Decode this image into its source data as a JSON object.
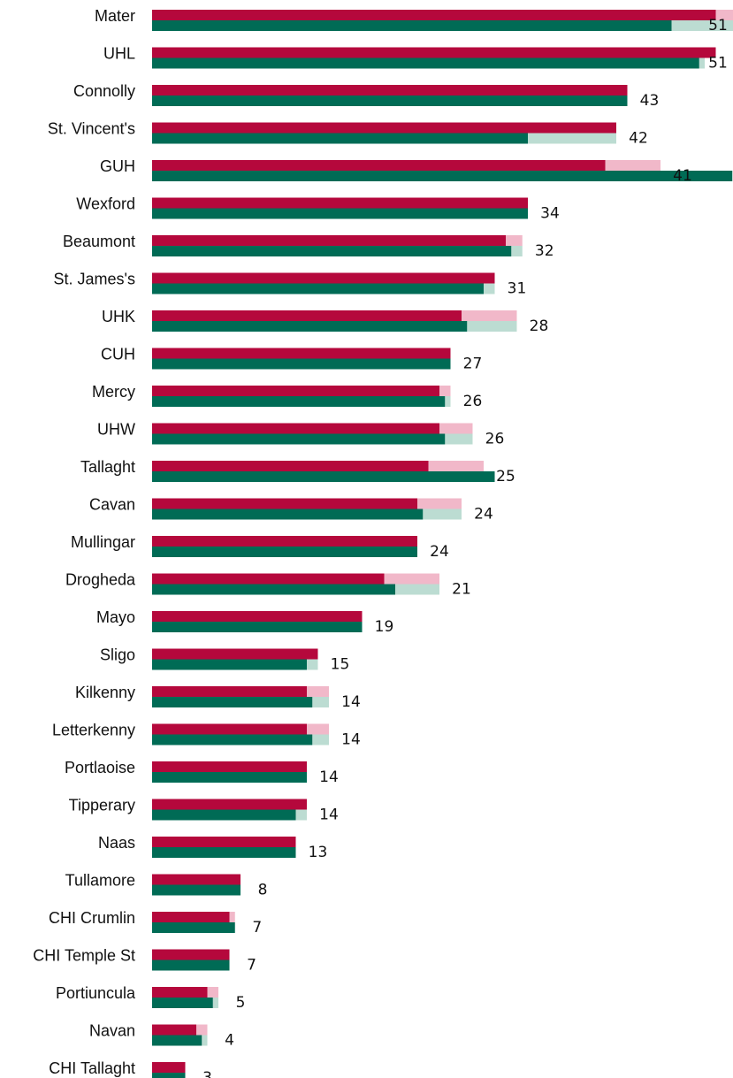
{
  "chart_data": {
    "type": "bar",
    "orientation": "horizontal",
    "categories": [
      "Mater",
      "UHL",
      "Connolly",
      "St. Vincent's",
      "GUH",
      "Wexford",
      "Beaumont",
      "St. James's",
      "UHK",
      "CUH",
      "Mercy",
      "UHW",
      "Tallaght",
      "Cavan",
      "Mullingar",
      "Drogheda",
      "Mayo",
      "Sligo",
      "Kilkenny",
      "Letterkenny",
      "Portlaoise",
      "Tipperary",
      "Naas",
      "Tullamore",
      "CHI Crumlin",
      "CHI Temple St",
      "Portiuncula",
      "Navan",
      "CHI Tallaght"
    ],
    "series": [
      {
        "values": [
          51,
          51,
          43,
          42,
          41,
          34,
          32,
          31,
          28,
          27,
          26,
          26,
          25,
          24,
          24,
          21,
          19,
          15,
          14,
          14,
          14,
          14,
          13,
          8,
          7,
          7,
          5,
          4,
          3
        ]
      },
      {
        "values": [
          47,
          49.5,
          43,
          34,
          52.5,
          34,
          32.5,
          30,
          28.5,
          27,
          26.5,
          26.5,
          31,
          24.5,
          24,
          22,
          19,
          14,
          14.5,
          14.5,
          14,
          13,
          13,
          8,
          7.5,
          7,
          5.5,
          4.5,
          3
        ]
      }
    ],
    "comparison_values": [
      53,
      50,
      43,
      42,
      46,
      34,
      33.5,
      31,
      33,
      27,
      27,
      29,
      30,
      28,
      24,
      26,
      19,
      15,
      16,
      16,
      14,
      14,
      13,
      8,
      7.5,
      7,
      6,
      5,
      3
    ],
    "value_labels": [
      "51",
      "51",
      "43",
      "42",
      "41",
      "34",
      "32",
      "31",
      "28",
      "27",
      "26",
      "26",
      "25",
      "24",
      "24",
      "21",
      "19",
      "15",
      "14",
      "14",
      "14",
      "14",
      "13",
      "8",
      "7",
      "7",
      "5",
      "4",
      "3"
    ],
    "xlim": [
      0,
      53
    ],
    "colors": {
      "series_1": "#b5083c",
      "series_2": "#006b55",
      "overlay_1": "#f1b8c9",
      "overlay_2": "#bcdcd2"
    },
    "legend": "none",
    "grid": false
  }
}
